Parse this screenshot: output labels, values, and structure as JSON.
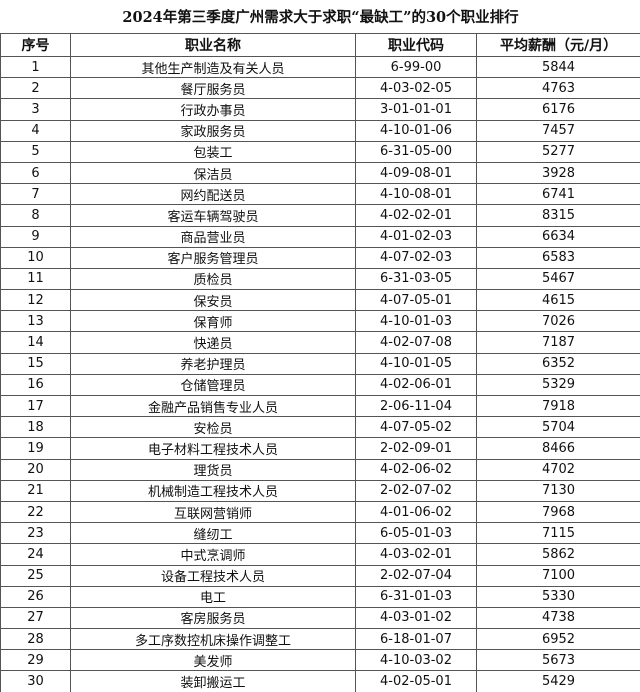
{
  "table": {
    "title": "2024年第三季度广州需求大于求职“最缺工”的30个职业排行",
    "headers": [
      "序号",
      "职业名称",
      "职业代码",
      "平均薪酬（元/月）"
    ],
    "rows": [
      [
        1,
        "其他生产制造及有关人员",
        "6-99-00",
        5844
      ],
      [
        2,
        "餐厅服务员",
        "4-03-02-05",
        4763
      ],
      [
        3,
        "行政办事员",
        "3-01-01-01",
        6176
      ],
      [
        4,
        "家政服务员",
        "4-10-01-06",
        7457
      ],
      [
        5,
        "包装工",
        "6-31-05-00",
        5277
      ],
      [
        6,
        "保洁员",
        "4-09-08-01",
        3928
      ],
      [
        7,
        "网约配送员",
        "4-10-08-01",
        6741
      ],
      [
        8,
        "客运车辆驾驶员",
        "4-02-02-01",
        8315
      ],
      [
        9,
        "商品营业员",
        "4-01-02-03",
        6634
      ],
      [
        10,
        "客户服务管理员",
        "4-07-02-03",
        6583
      ],
      [
        11,
        "质检员",
        "6-31-03-05",
        5467
      ],
      [
        12,
        "保安员",
        "4-07-05-01",
        4615
      ],
      [
        13,
        "保育师",
        "4-10-01-03",
        7026
      ],
      [
        14,
        "快递员",
        "4-02-07-08",
        7187
      ],
      [
        15,
        "养老护理员",
        "4-10-01-05",
        6352
      ],
      [
        16,
        "仓储管理员",
        "4-02-06-01",
        5329
      ],
      [
        17,
        "金融产品销售专业人员",
        "2-06-11-04",
        7918
      ],
      [
        18,
        "安检员",
        "4-07-05-02",
        5704
      ],
      [
        19,
        "电子材料工程技术人员",
        "2-02-09-01",
        8466
      ],
      [
        20,
        "理货员",
        "4-02-06-02",
        4702
      ],
      [
        21,
        "机械制造工程技术人员",
        "2-02-07-02",
        7130
      ],
      [
        22,
        "互联网营销师",
        "4-01-06-02",
        7968
      ],
      [
        23,
        "缝纫工",
        "6-05-01-03",
        7115
      ],
      [
        24,
        "中式烹调师",
        "4-03-02-01",
        5862
      ],
      [
        25,
        "设备工程技术人员",
        "2-02-07-04",
        7100
      ],
      [
        26,
        "电工",
        "6-31-01-03",
        5330
      ],
      [
        27,
        "客房服务员",
        "4-03-01-02",
        4738
      ],
      [
        28,
        "多工序数控机床操作调整工",
        "6-18-01-07",
        6952
      ],
      [
        29,
        "美发师",
        "4-10-03-02",
        5673
      ],
      [
        30,
        "装卸搬运工",
        "4-02-05-01",
        5429
      ]
    ]
  }
}
